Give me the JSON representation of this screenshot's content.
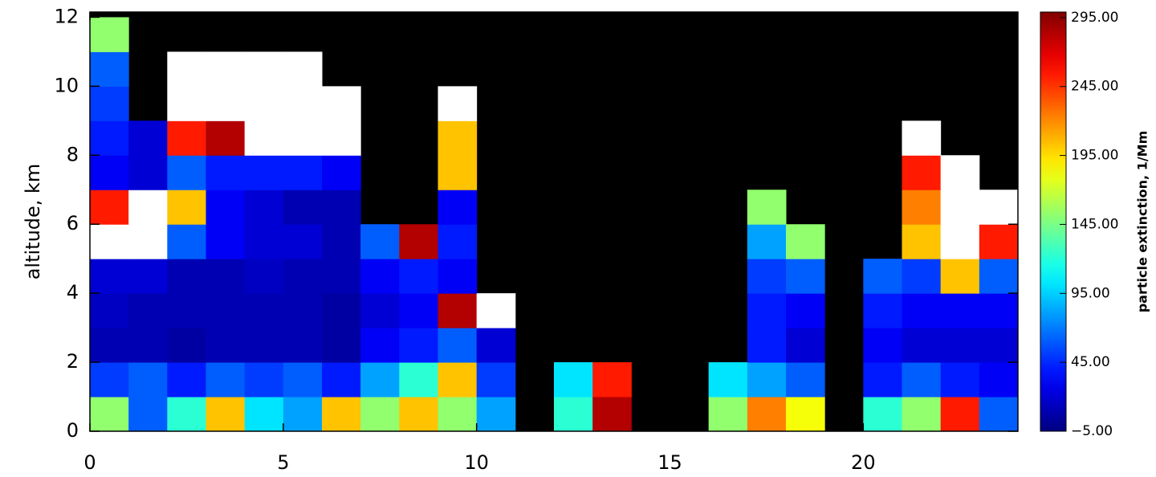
{
  "chart_data": {
    "type": "heatmap",
    "ylabel": "altitude, km",
    "colorbar_label": "particle extinction, 1/Mm",
    "xlim": [
      0,
      24
    ],
    "xticks": [
      0,
      5,
      10,
      15,
      20
    ],
    "ylim": [
      0,
      12.15
    ],
    "yticks": [
      0,
      2,
      4,
      6,
      8,
      10,
      12
    ],
    "zlim": [
      -5,
      299
    ],
    "zticks": [
      {
        "value": -5,
        "label": "−5.00"
      },
      {
        "value": 45,
        "label": "45.00"
      },
      {
        "value": 95,
        "label": "95.00"
      },
      {
        "value": 145,
        "label": "145.00"
      },
      {
        "value": 195,
        "label": "195.00"
      },
      {
        "value": 245,
        "label": "245.00"
      },
      {
        "value": 295,
        "label": "295.00"
      }
    ],
    "x_edges": [
      0,
      1,
      2,
      3,
      4,
      5,
      6,
      7,
      8,
      9,
      10,
      11,
      12,
      13,
      14,
      15,
      16,
      17,
      18,
      19,
      20,
      21,
      22,
      23,
      24
    ],
    "y_edges": [
      0,
      1,
      2,
      3,
      4,
      5,
      6,
      7,
      8,
      9,
      10,
      11,
      12
    ],
    "z": [
      [
        150,
        60,
        120,
        200,
        100,
        80,
        200,
        150,
        200,
        150,
        80,
        null,
        120,
        280,
        null,
        null,
        150,
        220,
        180,
        null,
        120,
        150,
        250,
        60
      ],
      [
        50,
        60,
        40,
        60,
        50,
        60,
        40,
        80,
        120,
        200,
        50,
        null,
        100,
        250,
        null,
        null,
        100,
        80,
        60,
        null,
        40,
        60,
        40,
        30
      ],
      [
        10,
        10,
        5,
        10,
        10,
        10,
        5,
        30,
        40,
        60,
        20,
        null,
        null,
        null,
        null,
        null,
        null,
        40,
        20,
        null,
        30,
        20,
        20,
        20
      ],
      [
        15,
        10,
        10,
        10,
        10,
        10,
        5,
        20,
        30,
        280,
        300,
        null,
        null,
        null,
        null,
        null,
        null,
        40,
        30,
        null,
        40,
        30,
        30,
        30
      ],
      [
        20,
        20,
        10,
        10,
        15,
        10,
        10,
        30,
        40,
        30,
        null,
        null,
        null,
        null,
        null,
        null,
        null,
        50,
        60,
        null,
        60,
        50,
        200,
        60
      ],
      [
        300,
        300,
        60,
        30,
        20,
        20,
        10,
        60,
        280,
        40,
        null,
        null,
        null,
        null,
        null,
        null,
        null,
        80,
        150,
        null,
        null,
        200,
        300,
        250
      ],
      [
        250,
        300,
        200,
        30,
        20,
        10,
        10,
        null,
        null,
        30,
        null,
        null,
        null,
        null,
        null,
        null,
        null,
        150,
        null,
        null,
        null,
        220,
        300,
        300
      ],
      [
        30,
        20,
        60,
        40,
        40,
        40,
        30,
        null,
        null,
        200,
        null,
        null,
        null,
        null,
        null,
        null,
        null,
        null,
        null,
        null,
        null,
        250,
        300,
        null
      ],
      [
        40,
        20,
        250,
        280,
        300,
        300,
        300,
        null,
        null,
        200,
        null,
        null,
        null,
        null,
        null,
        null,
        null,
        null,
        null,
        null,
        null,
        300,
        null,
        null
      ],
      [
        50,
        null,
        300,
        300,
        300,
        300,
        300,
        null,
        null,
        300,
        null,
        null,
        null,
        null,
        null,
        null,
        null,
        null,
        null,
        null,
        null,
        null,
        null,
        null
      ],
      [
        60,
        null,
        300,
        300,
        300,
        300,
        null,
        null,
        null,
        null,
        null,
        null,
        null,
        null,
        null,
        null,
        null,
        null,
        null,
        null,
        null,
        null,
        null,
        null
      ],
      [
        150,
        null,
        null,
        null,
        null,
        null,
        null,
        null,
        null,
        null,
        null,
        null,
        null,
        null,
        null,
        null,
        null,
        null,
        null,
        null,
        null,
        null,
        null,
        null
      ]
    ]
  }
}
